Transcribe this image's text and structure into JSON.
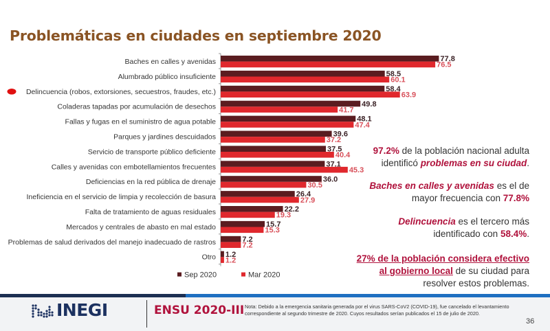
{
  "title": "Problemáticas en ciudades en septiembre 2020",
  "colors": {
    "sep": "#5a1c20",
    "mar": "#e0282d",
    "accent": "#b0123c",
    "title": "#8a5424",
    "marker": "#e01010"
  },
  "chart_data": {
    "type": "bar",
    "orientation": "horizontal",
    "title": "Problemáticas en ciudades en septiembre 2020",
    "xlabel": "",
    "ylabel": "",
    "xlim": [
      0,
      80
    ],
    "grid": false,
    "legend_position": "bottom",
    "categories": [
      "Baches en calles y avenidas",
      "Alumbrado público insuficiente",
      "Delincuencia (robos, extorsiones, secuestros, fraudes, etc.)",
      "Coladeras tapadas por acumulación de desechos",
      "Fallas y fugas en el suministro de agua potable",
      "Parques y jardines descuidados",
      "Servicio de transporte público deficiente",
      "Calles y avenidas con embotellamientos frecuentes",
      "Deficiencias en la red pública de drenaje",
      "Ineficiencia en el servicio de limpia y recolección de basura",
      "Falta de tratamiento de aguas residuales",
      "Mercados y centrales de abasto en mal estado",
      "Problemas de salud derivados del manejo inadecuado de rastros",
      "Otro"
    ],
    "highlighted_category": "Delincuencia (robos, extorsiones, secuestros, fraudes, etc.)",
    "series": [
      {
        "name": "Sep 2020",
        "values": [
          77.8,
          58.5,
          58.4,
          49.8,
          48.1,
          39.6,
          37.5,
          37.1,
          36.0,
          26.4,
          22.2,
          15.7,
          7.2,
          1.2
        ]
      },
      {
        "name": "Mar 2020",
        "values": [
          76.5,
          60.1,
          63.9,
          41.7,
          47.4,
          37.2,
          40.4,
          45.3,
          30.5,
          27.9,
          19.3,
          15.3,
          7.2,
          1.2
        ]
      }
    ]
  },
  "side_text": {
    "p1": {
      "highlight": "97.2%",
      "text1": " de la población nacional adulta identificó ",
      "emph": "problemas en su ciudad",
      "end": "."
    },
    "p2": {
      "emph": "Baches en calles y avenidas",
      "text1": " es el de mayor frecuencia con ",
      "highlight": "77.8%"
    },
    "p3": {
      "emph": "Delincuencia",
      "text1": " es el tercero más identificado con ",
      "highlight": "58.4%",
      "end": "."
    },
    "p4": {
      "underlined": "27% de la población considera efectivo al gobierno local",
      "text1": " de su ciudad para resolver estos problemas."
    }
  },
  "footer": {
    "logo_text": "INEGI",
    "survey": "ENSU 2020-III",
    "note": "Nota: Debido a la emergencia sanitaria generada por el virus SARS-CoV2 (COVID-19), fue cancelado el levantamiento correspondiente al segundo trimestre de 2020. Cuyos resultados serían publicados el 15 de julio de 2020.",
    "page": "36"
  }
}
